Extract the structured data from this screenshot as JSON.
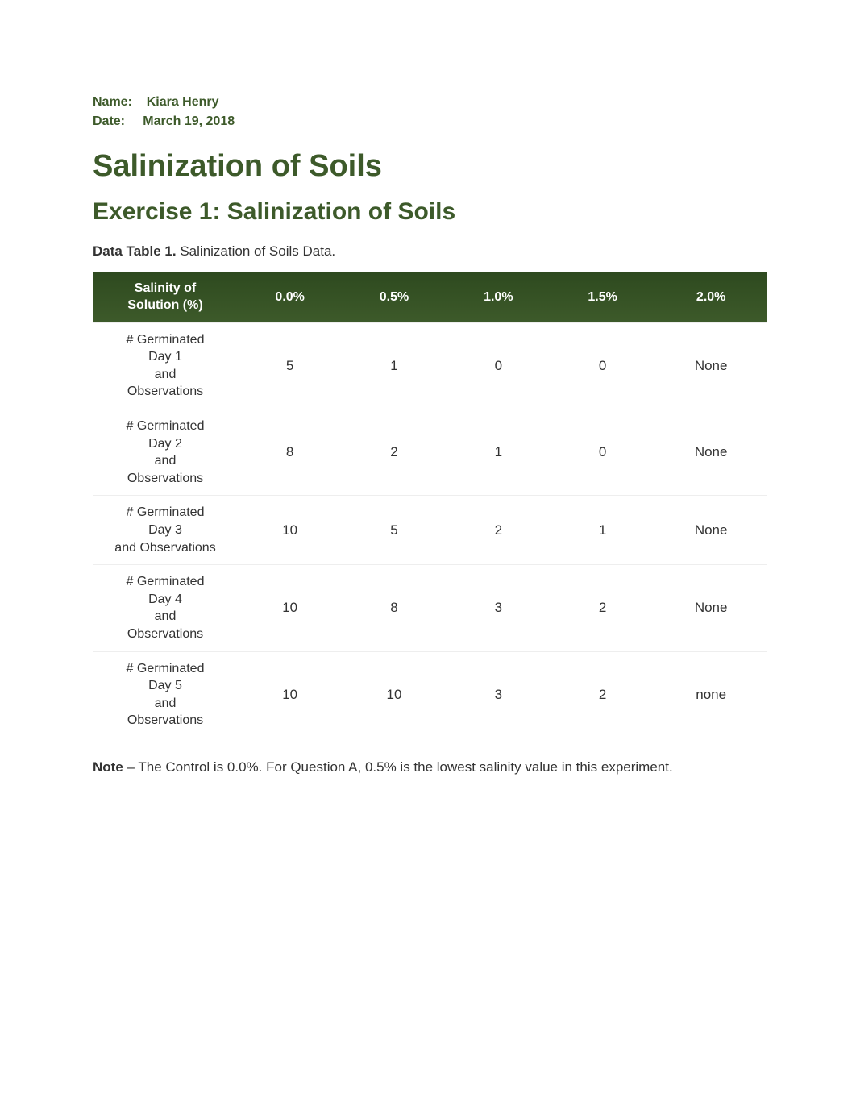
{
  "meta": {
    "name_label": "Name:",
    "name_value": "Kiara Henry",
    "date_label": "Date:",
    "date_value": "March 19, 2018"
  },
  "title": "Salinization of Soils",
  "subtitle": "Exercise 1: Salinization of Soils",
  "table_caption_bold": "Data Table 1.",
  "table_caption_rest": " Salinization of Soils Data.",
  "table": {
    "type": "table",
    "header_bg_color": "#3d5a2a",
    "header_text_color": "#ffffff",
    "cell_bg_color": "#ffffff",
    "cell_text_color": "#333333",
    "border_color": "#eeeeee",
    "header_fontsize": 16,
    "cell_fontsize": 17,
    "columns": [
      "Salinity of\nSolution (%)",
      "0.0%",
      "0.5%",
      "1.0%",
      "1.5%",
      "2.0%"
    ],
    "row_labels": [
      "# Germinated\nDay 1\nand\nObservations",
      "# Germinated\nDay 2\nand\nObservations",
      "# Germinated\nDay 3\nand Observations",
      "# Germinated\nDay 4\nand\nObservations",
      "# Germinated\nDay 5\nand\nObservations"
    ],
    "rows": [
      [
        "5",
        "1",
        "0",
        "0",
        "None"
      ],
      [
        "8",
        "2",
        "1",
        "0",
        "None"
      ],
      [
        "10",
        "5",
        "2",
        "1",
        "None"
      ],
      [
        "10",
        "8",
        "3",
        "2",
        "None"
      ],
      [
        "10",
        "10",
        "3",
        "2",
        "none"
      ]
    ]
  },
  "note_bold": "Note",
  "note_rest": " – The Control is 0.0%. For Question A, 0.5% is the lowest salinity value in this experiment.",
  "colors": {
    "heading_color": "#3d5a2a",
    "body_text": "#333333",
    "background": "#ffffff"
  }
}
